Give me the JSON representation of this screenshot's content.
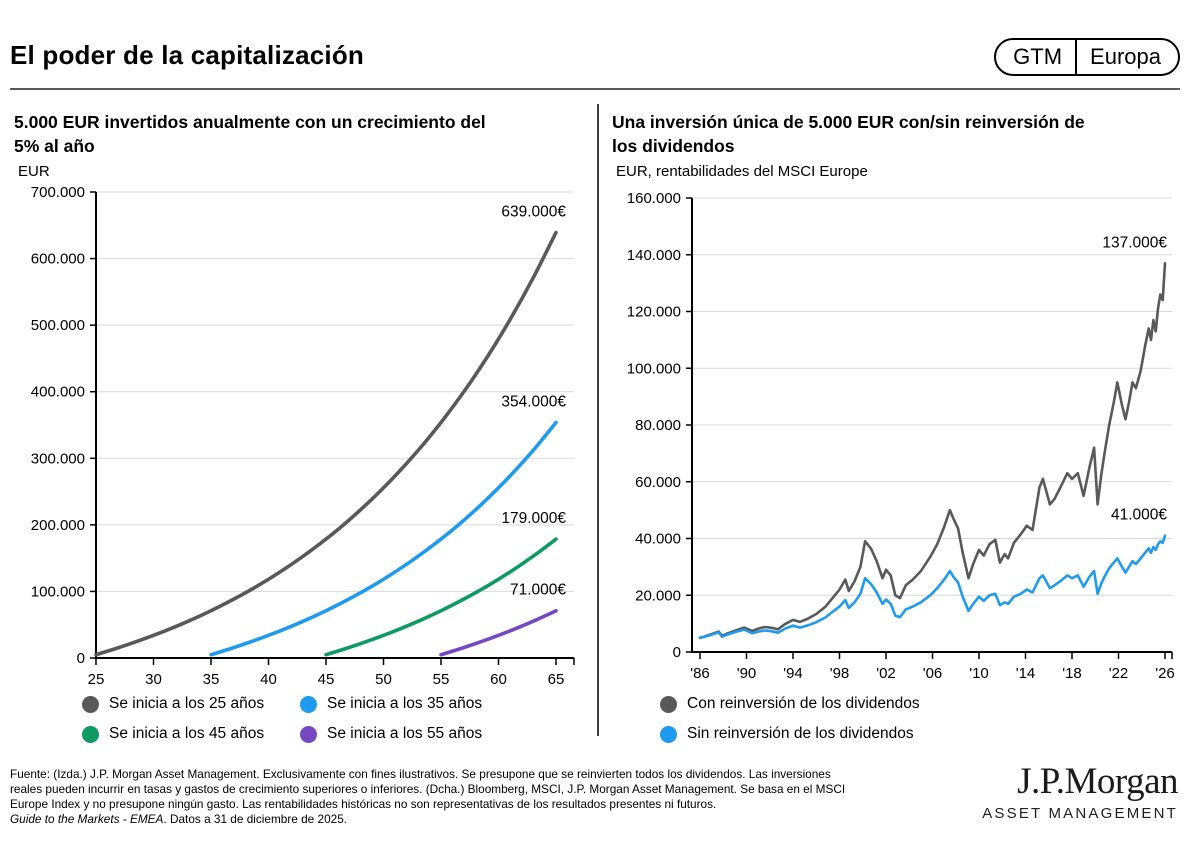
{
  "header": {
    "title": "El poder de la capitalización",
    "badge_left": "GTM",
    "badge_right": "Europa"
  },
  "chart_data": [
    {
      "type": "line",
      "title_lines": [
        "5.000 EUR invertidos anualmente con un crecimiento del",
        "5% al año"
      ],
      "unit_label": "EUR",
      "xlim": [
        25,
        65
      ],
      "ylim": [
        0,
        700000
      ],
      "y_step": 100000,
      "x_ticks": [
        [
          25,
          "25"
        ],
        [
          30,
          "30"
        ],
        [
          35,
          "35"
        ],
        [
          40,
          "40"
        ],
        [
          45,
          "45"
        ],
        [
          50,
          "50"
        ],
        [
          55,
          "55"
        ],
        [
          60,
          "60"
        ],
        [
          65,
          "65"
        ]
      ],
      "grid": true,
      "legend_position": "bottom",
      "series": [
        {
          "name": "Se inicia a los 25 años",
          "color": "#595959",
          "end_label": "639.000€",
          "smooth": true,
          "points": [
            [
              25,
              5000
            ],
            [
              27,
              15760
            ],
            [
              29,
              27630
            ],
            [
              31,
              40710
            ],
            [
              33,
              55130
            ],
            [
              35,
              71030
            ],
            [
              37,
              88560
            ],
            [
              39,
              107890
            ],
            [
              41,
              129200
            ],
            [
              43,
              152700
            ],
            [
              45,
              178600
            ],
            [
              47,
              207150
            ],
            [
              49,
              238640
            ],
            [
              51,
              273350
            ],
            [
              53,
              311610
            ],
            [
              55,
              353800
            ],
            [
              57,
              400320
            ],
            [
              59,
              451600
            ],
            [
              61,
              508140
            ],
            [
              63,
              570480
            ],
            [
              65,
              639200
            ]
          ]
        },
        {
          "name": "Se inicia a los 35 años",
          "color": "#1e9bef",
          "end_label": "354.000€",
          "smooth": true,
          "points": [
            [
              35,
              5000
            ],
            [
              37,
              15760
            ],
            [
              39,
              27630
            ],
            [
              41,
              40710
            ],
            [
              43,
              55130
            ],
            [
              45,
              71030
            ],
            [
              47,
              88560
            ],
            [
              49,
              107890
            ],
            [
              51,
              129200
            ],
            [
              53,
              152700
            ],
            [
              55,
              178600
            ],
            [
              57,
              207150
            ],
            [
              59,
              238640
            ],
            [
              61,
              273350
            ],
            [
              63,
              311610
            ],
            [
              65,
              353800
            ]
          ]
        },
        {
          "name": "Se inicia a los 45 años",
          "color": "#0d9b62",
          "end_label": "179.000€",
          "smooth": true,
          "points": [
            [
              45,
              5000
            ],
            [
              47,
              15760
            ],
            [
              49,
              27630
            ],
            [
              51,
              40710
            ],
            [
              53,
              55130
            ],
            [
              55,
              71030
            ],
            [
              57,
              88560
            ],
            [
              59,
              107890
            ],
            [
              61,
              129200
            ],
            [
              63,
              152700
            ],
            [
              65,
              178600
            ]
          ]
        },
        {
          "name": "Se inicia a los 55 años",
          "color": "#7648c0",
          "end_label": "71.000€",
          "smooth": true,
          "points": [
            [
              55,
              5000
            ],
            [
              57,
              15760
            ],
            [
              59,
              27630
            ],
            [
              61,
              40710
            ],
            [
              63,
              55130
            ],
            [
              65,
              71030
            ]
          ]
        }
      ]
    },
    {
      "type": "line",
      "title_lines": [
        "Una inversión única de 5.000 EUR con/sin reinversión de",
        "los dividendos"
      ],
      "unit_label": "EUR, rentabilidades del MSCI Europe",
      "xlim": [
        1986,
        2026
      ],
      "ylim": [
        0,
        160000
      ],
      "y_step": 20000,
      "x_ticks": [
        [
          1986,
          "'86"
        ],
        [
          1990,
          "'90"
        ],
        [
          1994,
          "'94"
        ],
        [
          1998,
          "'98"
        ],
        [
          2002,
          "'02"
        ],
        [
          2006,
          "'06"
        ],
        [
          2010,
          "'10"
        ],
        [
          2014,
          "'14"
        ],
        [
          2018,
          "'18"
        ],
        [
          2022,
          "'22"
        ],
        [
          2026,
          "'26"
        ]
      ],
      "grid": true,
      "legend_position": "bottom",
      "series": [
        {
          "name": "Con reinversión de los dividendos",
          "color": "#595959",
          "end_label": "137.000€",
          "smooth": false,
          "points": [
            [
              1986,
              5000
            ],
            [
              1986.5,
              5600
            ],
            [
              1987,
              6300
            ],
            [
              1987.6,
              7200
            ],
            [
              1987.9,
              5700
            ],
            [
              1988.4,
              6600
            ],
            [
              1989,
              7500
            ],
            [
              1989.8,
              8600
            ],
            [
              1990.5,
              7400
            ],
            [
              1991,
              8200
            ],
            [
              1991.6,
              8800
            ],
            [
              1992.2,
              8500
            ],
            [
              1992.7,
              8000
            ],
            [
              1993.3,
              9800
            ],
            [
              1994,
              11300
            ],
            [
              1994.6,
              10600
            ],
            [
              1995.3,
              11800
            ],
            [
              1996,
              13400
            ],
            [
              1996.8,
              16000
            ],
            [
              1997.5,
              19500
            ],
            [
              1998,
              22000
            ],
            [
              1998.5,
              25500
            ],
            [
              1998.8,
              21500
            ],
            [
              1999.3,
              25000
            ],
            [
              1999.8,
              30000
            ],
            [
              2000.2,
              39000
            ],
            [
              2000.7,
              36500
            ],
            [
              2001.2,
              32000
            ],
            [
              2001.7,
              26000
            ],
            [
              2002,
              29000
            ],
            [
              2002.4,
              27000
            ],
            [
              2002.8,
              20000
            ],
            [
              2003.2,
              19000
            ],
            [
              2003.7,
              23500
            ],
            [
              2004.3,
              25500
            ],
            [
              2005,
              28500
            ],
            [
              2005.8,
              33500
            ],
            [
              2006.4,
              38000
            ],
            [
              2007,
              44000
            ],
            [
              2007.5,
              50000
            ],
            [
              2007.8,
              47000
            ],
            [
              2008.2,
              43500
            ],
            [
              2008.6,
              35000
            ],
            [
              2009.1,
              26000
            ],
            [
              2009.5,
              31000
            ],
            [
              2010,
              36000
            ],
            [
              2010.4,
              34000
            ],
            [
              2010.9,
              38000
            ],
            [
              2011.4,
              39500
            ],
            [
              2011.8,
              31500
            ],
            [
              2012.2,
              34500
            ],
            [
              2012.5,
              33000
            ],
            [
              2013,
              38500
            ],
            [
              2013.6,
              41500
            ],
            [
              2014.1,
              44500
            ],
            [
              2014.6,
              43000
            ],
            [
              2015.2,
              58000
            ],
            [
              2015.5,
              61000
            ],
            [
              2016.1,
              52000
            ],
            [
              2016.5,
              54000
            ],
            [
              2017,
              58000
            ],
            [
              2017.6,
              63000
            ],
            [
              2018,
              61000
            ],
            [
              2018.5,
              63000
            ],
            [
              2019,
              55000
            ],
            [
              2019.5,
              65000
            ],
            [
              2019.9,
              72000
            ],
            [
              2020.2,
              52000
            ],
            [
              2020.5,
              62000
            ],
            [
              2020.8,
              70000
            ],
            [
              2021.2,
              80000
            ],
            [
              2021.6,
              88000
            ],
            [
              2021.9,
              95000
            ],
            [
              2022.3,
              87000
            ],
            [
              2022.6,
              82000
            ],
            [
              2022.9,
              88000
            ],
            [
              2023.2,
              95000
            ],
            [
              2023.5,
              93000
            ],
            [
              2023.9,
              99000
            ],
            [
              2024.3,
              108000
            ],
            [
              2024.6,
              114000
            ],
            [
              2024.8,
              110000
            ],
            [
              2025,
              117000
            ],
            [
              2025.2,
              113000
            ],
            [
              2025.4,
              121000
            ],
            [
              2025.6,
              126000
            ],
            [
              2025.8,
              124000
            ],
            [
              2026,
              137000
            ]
          ]
        },
        {
          "name": "Sin reinversión de los dividendos",
          "color": "#1e9bef",
          "end_label": "41.000€",
          "smooth": false,
          "points": [
            [
              1986,
              5000
            ],
            [
              1986.5,
              5500
            ],
            [
              1987,
              6100
            ],
            [
              1987.6,
              6900
            ],
            [
              1987.9,
              5400
            ],
            [
              1988.4,
              6200
            ],
            [
              1989,
              7000
            ],
            [
              1989.8,
              7900
            ],
            [
              1990.5,
              6600
            ],
            [
              1991,
              7200
            ],
            [
              1991.6,
              7600
            ],
            [
              1992.2,
              7300
            ],
            [
              1992.7,
              6800
            ],
            [
              1993.3,
              8200
            ],
            [
              1994,
              9300
            ],
            [
              1994.6,
              8600
            ],
            [
              1995.3,
              9400
            ],
            [
              1996,
              10500
            ],
            [
              1996.8,
              12200
            ],
            [
              1997.5,
              14500
            ],
            [
              1998,
              16000
            ],
            [
              1998.5,
              18300
            ],
            [
              1998.8,
              15500
            ],
            [
              1999.3,
              17500
            ],
            [
              1999.8,
              20500
            ],
            [
              2000.2,
              26000
            ],
            [
              2000.7,
              24000
            ],
            [
              2001.2,
              21000
            ],
            [
              2001.7,
              17000
            ],
            [
              2002,
              18500
            ],
            [
              2002.4,
              17000
            ],
            [
              2002.8,
              12800
            ],
            [
              2003.2,
              12300
            ],
            [
              2003.7,
              15000
            ],
            [
              2004.3,
              16000
            ],
            [
              2005,
              17500
            ],
            [
              2005.8,
              20000
            ],
            [
              2006.4,
              22500
            ],
            [
              2007,
              25500
            ],
            [
              2007.5,
              28500
            ],
            [
              2007.8,
              26500
            ],
            [
              2008.2,
              24500
            ],
            [
              2008.6,
              19500
            ],
            [
              2009.1,
              14500
            ],
            [
              2009.5,
              17000
            ],
            [
              2010,
              19500
            ],
            [
              2010.4,
              18000
            ],
            [
              2010.9,
              20000
            ],
            [
              2011.4,
              20500
            ],
            [
              2011.8,
              16500
            ],
            [
              2012.2,
              17500
            ],
            [
              2012.5,
              17000
            ],
            [
              2013,
              19500
            ],
            [
              2013.6,
              20500
            ],
            [
              2014.1,
              22000
            ],
            [
              2014.6,
              21000
            ],
            [
              2015.2,
              26000
            ],
            [
              2015.5,
              27000
            ],
            [
              2016.1,
              22500
            ],
            [
              2016.5,
              23500
            ],
            [
              2017,
              25000
            ],
            [
              2017.6,
              27000
            ],
            [
              2018,
              26000
            ],
            [
              2018.5,
              27000
            ],
            [
              2019,
              23000
            ],
            [
              2019.5,
              26500
            ],
            [
              2019.9,
              28500
            ],
            [
              2020.2,
              20500
            ],
            [
              2020.5,
              24000
            ],
            [
              2020.8,
              26500
            ],
            [
              2021.2,
              29500
            ],
            [
              2021.6,
              31500
            ],
            [
              2021.9,
              33000
            ],
            [
              2022.3,
              30000
            ],
            [
              2022.6,
              28000
            ],
            [
              2022.9,
              30000
            ],
            [
              2023.2,
              32000
            ],
            [
              2023.5,
              31000
            ],
            [
              2023.9,
              33000
            ],
            [
              2024.3,
              35000
            ],
            [
              2024.6,
              36500
            ],
            [
              2024.8,
              35000
            ],
            [
              2025,
              37000
            ],
            [
              2025.2,
              36000
            ],
            [
              2025.4,
              38000
            ],
            [
              2025.6,
              39000
            ],
            [
              2025.8,
              38500
            ],
            [
              2026,
              41000
            ]
          ]
        }
      ]
    }
  ],
  "footer": {
    "lines": [
      "Fuente: (Izda.) J.P. Morgan Asset Management. Exclusivamente con fines ilustrativos. Se presupone que se reinvierten todos los dividendos. Las inversiones",
      "reales pueden incurrir en tasas y gastos de crecimiento superiores o inferiores. (Dcha.) Bloomberg, MSCI, J.P. Morgan Asset Management. Se basa en el MSCI",
      "Europe Index y no presupone ningún gasto. Las rentabilidades históricas no son representativas de los resultados presentes ni futuros."
    ],
    "gtm_italic": "Guide to the Markets - EMEA",
    "gtm_suffix": ". Datos a 31 de diciembre de 2025."
  },
  "logo": {
    "name": "J.P.Morgan",
    "division": "ASSET MANAGEMENT"
  }
}
